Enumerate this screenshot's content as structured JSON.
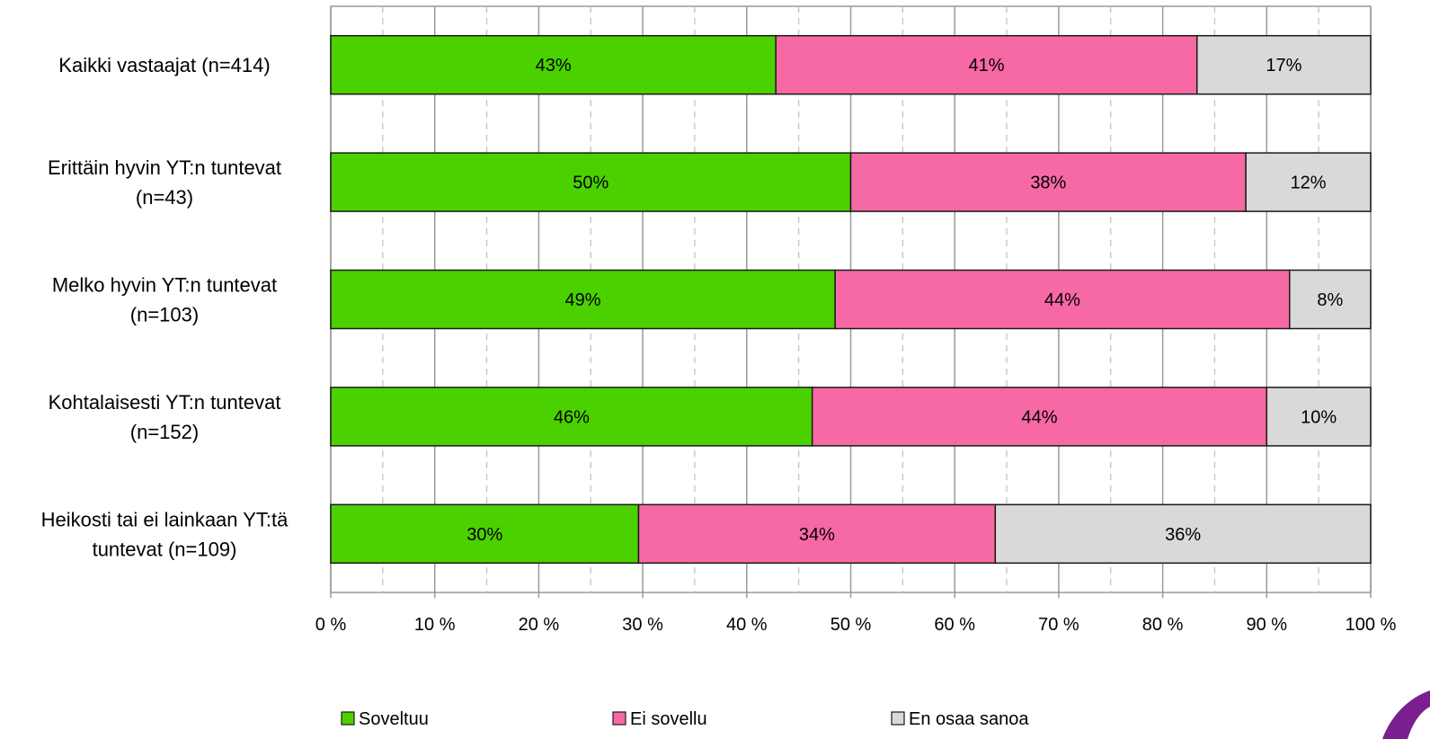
{
  "chart_data": {
    "type": "bar",
    "orientation": "horizontal",
    "stacked": true,
    "categories": [
      [
        "Kaikki vastaajat (n=414)"
      ],
      [
        "Erittäin hyvin YT:n tuntevat",
        "(n=43)"
      ],
      [
        "Melko hyvin YT:n tuntevat",
        "(n=103)"
      ],
      [
        "Kohtalaisesti YT:n tuntevat",
        "(n=152)"
      ],
      [
        "Heikosti tai ei lainkaan YT:tä",
        "tuntevat (n=109)"
      ]
    ],
    "series": [
      {
        "name": "Soveltuu",
        "color": "#4cd100",
        "values": [
          42.8,
          50.0,
          48.5,
          46.3,
          29.6
        ],
        "labels": [
          "43%",
          "50%",
          "49%",
          "46%",
          "30%"
        ]
      },
      {
        "name": "Ei sovellu",
        "color": "#f769a4",
        "values": [
          40.5,
          38.0,
          43.7,
          43.7,
          34.3
        ],
        "labels": [
          "41%",
          "38%",
          "44%",
          "44%",
          "34%"
        ]
      },
      {
        "name": "En osaa sanoa",
        "color": "#d9d9d9",
        "values": [
          16.7,
          12.0,
          7.8,
          10.0,
          36.1
        ],
        "labels": [
          "17%",
          "12%",
          "8%",
          "10%",
          "36%"
        ]
      }
    ],
    "xlim": [
      0,
      100
    ],
    "xticks": [
      "0 %",
      "10 %",
      "20 %",
      "30 %",
      "40 %",
      "50 %",
      "60 %",
      "70 %",
      "80 %",
      "90 %",
      "100 %"
    ],
    "grid": "major solid, minor dashed",
    "legend_position": "bottom"
  }
}
